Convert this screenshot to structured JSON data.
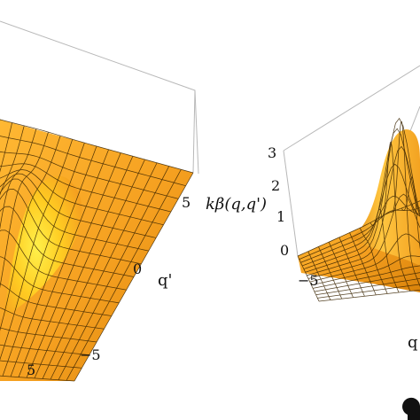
{
  "chart_data": [
    {
      "type": "surface",
      "title": "",
      "xlabel": "",
      "ylabel": "q'",
      "zlabel": "",
      "x_ticks": [
        "5"
      ],
      "y_ticks": [
        "−5",
        "0",
        "5"
      ],
      "surface_color": "#f5a623",
      "mesh_color": "#3a2400",
      "peak_z_approx": 1.0,
      "peak_location": "near q = q'"
    },
    {
      "type": "surface",
      "title": "",
      "xlabel": "q",
      "ylabel": "",
      "zlabel": "kβ(q,q')",
      "z_ticks": [
        "0",
        "1",
        "2",
        "3"
      ],
      "x_ticks": [
        "−5"
      ],
      "zlim": [
        0,
        3
      ],
      "surface_color": "#f5a623",
      "mesh_color": "#3a2400",
      "peak_z_approx": 3.0,
      "peak_location": "near q = q' = 0"
    }
  ],
  "labels": {
    "left_tick_x5": "5",
    "left_tick_yneg5": "−5",
    "left_tick_y0": "0",
    "left_tick_y5": "5",
    "left_axis_q": "q'",
    "right_zlabel": "kβ(q,q')",
    "right_ztick_0": "0",
    "right_ztick_1": "1",
    "right_ztick_2": "2",
    "right_ztick_3": "3",
    "right_tick_xneg5": "−5",
    "right_axis_q": "q"
  }
}
